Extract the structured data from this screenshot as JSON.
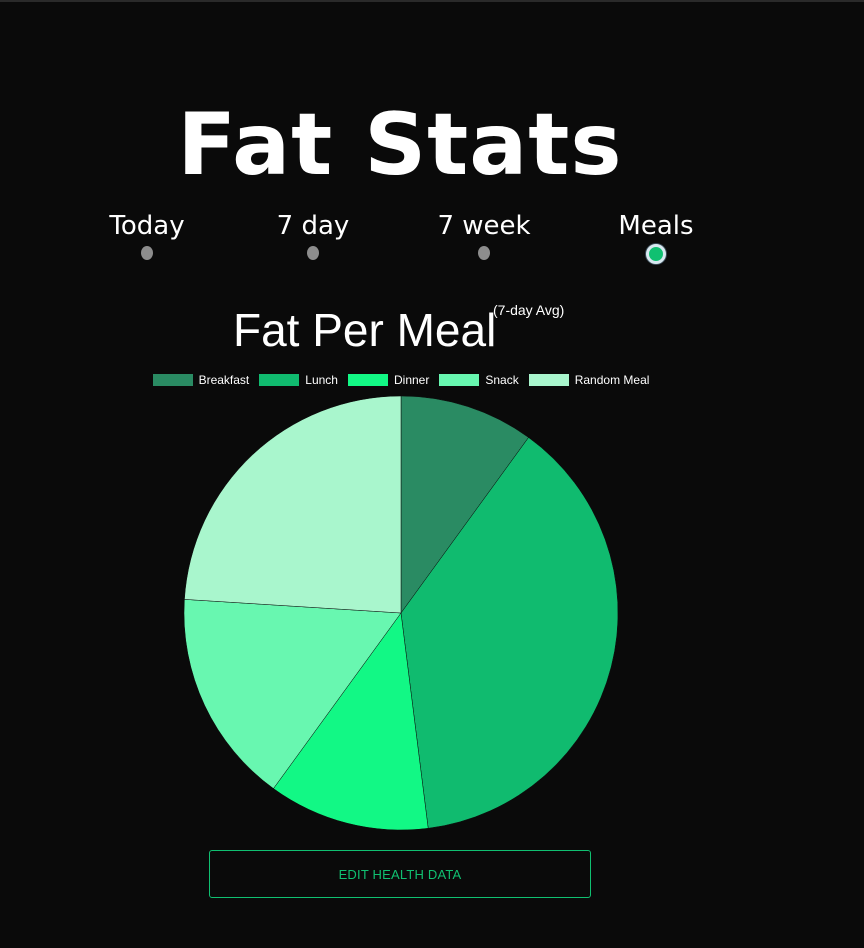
{
  "app": {
    "title": "Fat Stats"
  },
  "tabs": [
    {
      "label": "Today",
      "selected": false
    },
    {
      "label": "7 day",
      "selected": false
    },
    {
      "label": "7 week",
      "selected": false
    },
    {
      "label": "Meals",
      "selected": true
    }
  ],
  "chart_data": {
    "type": "pie",
    "title": "Fat Per Meal",
    "subtitle": "(7-day Avg)",
    "legend_position": "top",
    "categories": [
      "Breakfast",
      "Lunch",
      "Dinner",
      "Snack",
      "Random Meal"
    ],
    "values": [
      10,
      38,
      12,
      16,
      24
    ],
    "colors": [
      "#2a8b63",
      "#10bb6f",
      "#12f885",
      "#68f7b0",
      "#a9f6cd"
    ]
  },
  "actions": {
    "edit_label": "EDIT HEALTH DATA"
  }
}
